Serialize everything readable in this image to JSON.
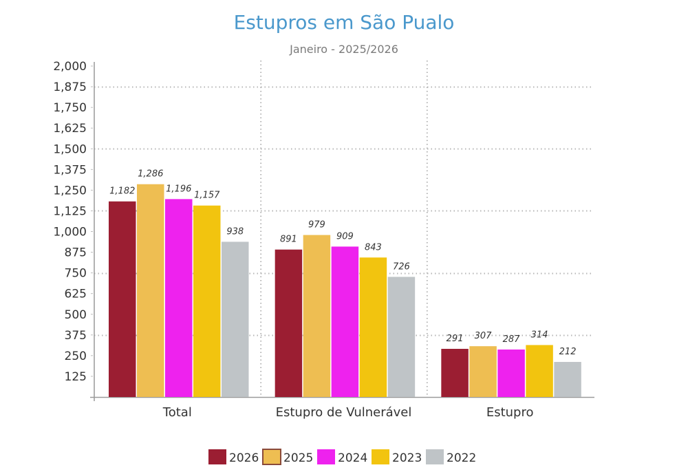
{
  "chart_data": {
    "type": "bar",
    "title": "Estupros em São Pualo",
    "subtitle": "Janeiro - 2025/2026",
    "xlabel": "",
    "ylabel": "",
    "categories": [
      "Total",
      "Estupro de Vulnerável",
      "Estupro"
    ],
    "series": [
      {
        "name": "2026",
        "color": "#9b1e32",
        "values": [
          1182,
          891,
          291
        ]
      },
      {
        "name": "2025",
        "color": "#eebe52",
        "values": [
          1286,
          979,
          307
        ]
      },
      {
        "name": "2024",
        "color": "#ee22ee",
        "values": [
          1196,
          909,
          287
        ]
      },
      {
        "name": "2023",
        "color": "#f2c40f",
        "values": [
          1157,
          843,
          314
        ]
      },
      {
        "name": "2022",
        "color": "#bfc4c7",
        "values": [
          938,
          726,
          212
        ]
      }
    ],
    "data_labels": [
      [
        "1,182",
        "891",
        "291"
      ],
      [
        "1,286",
        "979",
        "307"
      ],
      [
        "1,196",
        "909",
        "287"
      ],
      [
        "1,157",
        "843",
        "314"
      ],
      [
        "938",
        "726",
        "212"
      ]
    ],
    "ylim": [
      0,
      2000
    ],
    "yticks": [
      125,
      250,
      375,
      500,
      625,
      750,
      875,
      1000,
      1125,
      1250,
      1375,
      1500,
      1625,
      1750,
      1875,
      2000
    ],
    "ytick_labels": [
      "125",
      "250",
      "375",
      "500",
      "625",
      "750",
      "875",
      "1,000",
      "1,125",
      "1,250",
      "1,375",
      "1,500",
      "1,625",
      "1,750",
      "1,875",
      "2,000"
    ],
    "grid": true,
    "grid_lines_at": [
      375,
      750,
      1125,
      1500,
      1875
    ],
    "legend_position": "bottom-center"
  }
}
